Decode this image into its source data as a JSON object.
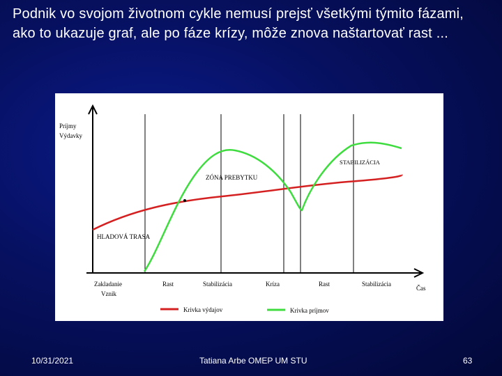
{
  "slide": {
    "title": "Podnik vo svojom životnom cykle nemusí prejsť všetkými týmito fázami, ako to ukazuje graf, ale po fáze krízy, môže znova naštartovať rast ...",
    "footer_date": "10/31/2021",
    "footer_center": "Tatiana Arbe OMEP  UM STU",
    "footer_page": "63"
  },
  "colors": {
    "background": "#06105e",
    "expenses": "#d42020",
    "revenue": "#3fdc3f"
  },
  "chart_data": {
    "type": "line",
    "ylabel_line1": "Príjmy",
    "ylabel_line2": "Výdavky",
    "xlabel": "Čas",
    "phases": [
      "Zakladanie",
      "Rast",
      "Stabilizácia",
      "Kríza",
      "Rast",
      "Stabilizácia"
    ],
    "phase0_sub": "Vznik",
    "annotations": {
      "hunger": "HLADOVÁ TRASA",
      "surplus": "ZÓNA PREBYTKU",
      "stabilization": "STABILIZÁCIA"
    },
    "legend": {
      "expenses": "Krivka výdajov",
      "revenue": "Krivka príjmov"
    }
  }
}
